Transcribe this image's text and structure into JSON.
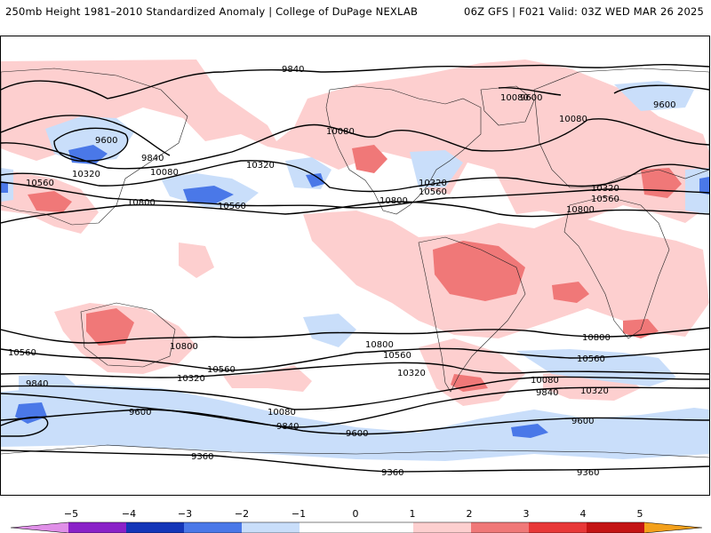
{
  "header": {
    "title": "250mb Height 1981–2010 Standardized Anomaly | College of DuPage NEXLAB",
    "run_info": "06Z GFS | F021 Valid: 03Z WED MAR 26 2025"
  },
  "colors": {
    "neg5": "#e08fe8",
    "neg4": "#8a22c8",
    "neg3": "#1436b8",
    "neg2": "#4a78e8",
    "neg1": "#c9defa",
    "zero": "#ffffff",
    "pos1": "#fdcfcf",
    "pos2": "#f07878",
    "pos3": "#e83838",
    "pos4": "#c41414",
    "pos5": "#f3a01b"
  },
  "colorbar": {
    "ticks": [
      "−5",
      "−4",
      "−3",
      "−2",
      "−1",
      "0",
      "1",
      "2",
      "3",
      "4",
      "5"
    ]
  },
  "contours": {
    "labels": [
      "9840",
      "9600",
      "10080",
      "10320",
      "10560",
      "10800",
      "9360"
    ],
    "placed": [
      {
        "text": "9840"
      },
      {
        "text": "9600"
      },
      {
        "text": "9600"
      },
      {
        "text": "10080"
      },
      {
        "text": "9840"
      },
      {
        "text": "10320"
      },
      {
        "text": "10080"
      },
      {
        "text": "10560"
      },
      {
        "text": "10800"
      },
      {
        "text": "10320"
      },
      {
        "text": "10560"
      },
      {
        "text": "10080"
      },
      {
        "text": "10320"
      },
      {
        "text": "10560"
      },
      {
        "text": "10800"
      },
      {
        "text": "10080"
      },
      {
        "text": "9600"
      },
      {
        "text": "10320"
      },
      {
        "text": "10560"
      },
      {
        "text": "10800"
      },
      {
        "text": "10560"
      },
      {
        "text": "10800"
      },
      {
        "text": "10560"
      },
      {
        "text": "10320"
      },
      {
        "text": "10080"
      },
      {
        "text": "9840"
      },
      {
        "text": "9600"
      },
      {
        "text": "9360"
      },
      {
        "text": "10800"
      },
      {
        "text": "10560"
      },
      {
        "text": "10320"
      },
      {
        "text": "10080"
      },
      {
        "text": "9840"
      },
      {
        "text": "9600"
      },
      {
        "text": "9360"
      },
      {
        "text": "10800"
      },
      {
        "text": "10560"
      },
      {
        "text": "10320"
      },
      {
        "text": "9840"
      },
      {
        "text": "9600"
      },
      {
        "text": "9360"
      }
    ]
  }
}
